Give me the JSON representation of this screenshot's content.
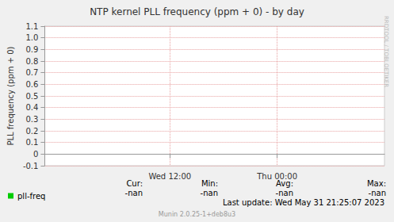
{
  "chart_data": {
    "type": "line",
    "title": "NTP kernel PLL frequency (ppm + 0) - by day",
    "y_label": "PLL frequency (ppm + 0)",
    "categories": [
      null,
      null,
      null,
      null,
      null,
      null,
      null,
      null,
      null,
      null,
      null,
      null,
      null,
      null,
      "Wed 12:00",
      null,
      null,
      null,
      null,
      null,
      null,
      null,
      null,
      null,
      null,
      null,
      "Thu 00:00",
      null,
      null,
      null,
      null,
      null,
      null,
      null,
      null,
      null,
      null,
      null,
      null
    ],
    "series": [
      {
        "name": "pll-freq",
        "color": "#00cc00",
        "values": [
          null,
          null,
          null,
          null,
          null,
          null,
          null,
          null,
          null,
          null,
          null,
          null,
          null,
          null,
          null,
          null,
          null,
          null,
          null,
          null,
          null,
          null,
          null,
          null,
          null,
          null,
          null,
          null,
          null,
          null,
          null,
          null,
          null,
          null,
          null,
          null,
          null,
          null,
          null
        ]
      }
    ],
    "ylim": [
      -0.1,
      1.1
    ],
    "yticks": [
      -0.1,
      0,
      0.1,
      0.2,
      0.3,
      0.4,
      0.5,
      0.6,
      0.7,
      0.8,
      0.9,
      {
        "value": 1,
        "label": "1.0"
      },
      1.1
    ],
    "grid": true,
    "legend": "bottom-left",
    "stats": {
      "headers": [
        "Cur:",
        "Min:",
        "Avg:",
        "Max:"
      ],
      "values": [
        "-nan",
        "-nan",
        "-nan",
        "-nan"
      ]
    },
    "footer": "Last update: Wed May 31 21:25:07 2023",
    "credit": "Munin 2.0.25-1+deb8u3",
    "side_text": "RRDTOOL / TOBI OETIKER"
  }
}
